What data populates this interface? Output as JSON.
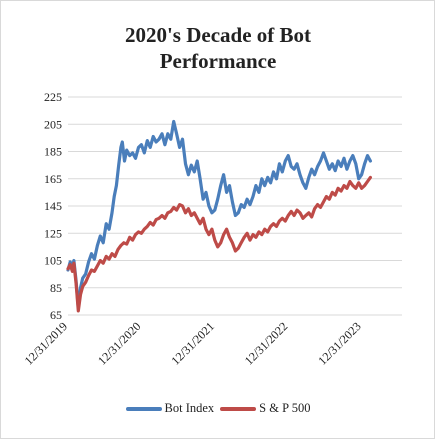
{
  "chart_data": {
    "type": "line",
    "title_lines": [
      "2020's Decade of Bot",
      "Performance"
    ],
    "xlabel": "",
    "ylabel": "",
    "ylim": [
      65,
      225
    ],
    "y_ticks": [
      65,
      85,
      105,
      125,
      145,
      165,
      185,
      205,
      225
    ],
    "x_ticks": [
      "12/31/2019",
      "12/31/2020",
      "12/31/2021",
      "12/31/2022",
      "12/31/2023"
    ],
    "x_range": [
      2020.0,
      2024.55
    ],
    "grid": true,
    "legend_position": "bottom",
    "series": [
      {
        "name": "Bot Index",
        "color": "#4a7ebb",
        "points": [
          [
            2020.0,
            98
          ],
          [
            2020.03,
            104
          ],
          [
            2020.06,
            100
          ],
          [
            2020.08,
            105
          ],
          [
            2020.11,
            90
          ],
          [
            2020.14,
            70
          ],
          [
            2020.17,
            85
          ],
          [
            2020.2,
            92
          ],
          [
            2020.24,
            95
          ],
          [
            2020.28,
            104
          ],
          [
            2020.32,
            110
          ],
          [
            2020.36,
            106
          ],
          [
            2020.4,
            116
          ],
          [
            2020.44,
            123
          ],
          [
            2020.48,
            118
          ],
          [
            2020.52,
            132
          ],
          [
            2020.56,
            128
          ],
          [
            2020.6,
            140
          ],
          [
            2020.63,
            152
          ],
          [
            2020.66,
            160
          ],
          [
            2020.69,
            175
          ],
          [
            2020.72,
            188
          ],
          [
            2020.74,
            192
          ],
          [
            2020.77,
            178
          ],
          [
            2020.8,
            186
          ],
          [
            2020.84,
            182
          ],
          [
            2020.88,
            184
          ],
          [
            2020.92,
            180
          ],
          [
            2020.96,
            188
          ],
          [
            2021.0,
            190
          ],
          [
            2021.04,
            184
          ],
          [
            2021.08,
            193
          ],
          [
            2021.12,
            188
          ],
          [
            2021.16,
            196
          ],
          [
            2021.2,
            192
          ],
          [
            2021.24,
            194
          ],
          [
            2021.28,
            198
          ],
          [
            2021.32,
            190
          ],
          [
            2021.36,
            198
          ],
          [
            2021.4,
            194
          ],
          [
            2021.44,
            207
          ],
          [
            2021.48,
            198
          ],
          [
            2021.52,
            188
          ],
          [
            2021.56,
            194
          ],
          [
            2021.6,
            176
          ],
          [
            2021.64,
            168
          ],
          [
            2021.68,
            175
          ],
          [
            2021.72,
            170
          ],
          [
            2021.76,
            178
          ],
          [
            2021.8,
            165
          ],
          [
            2021.84,
            150
          ],
          [
            2021.88,
            155
          ],
          [
            2021.92,
            145
          ],
          [
            2021.96,
            140
          ],
          [
            2022.0,
            142
          ],
          [
            2022.04,
            150
          ],
          [
            2022.08,
            160
          ],
          [
            2022.12,
            168
          ],
          [
            2022.16,
            155
          ],
          [
            2022.2,
            160
          ],
          [
            2022.24,
            148
          ],
          [
            2022.28,
            138
          ],
          [
            2022.32,
            140
          ],
          [
            2022.36,
            146
          ],
          [
            2022.4,
            144
          ],
          [
            2022.44,
            150
          ],
          [
            2022.48,
            146
          ],
          [
            2022.52,
            152
          ],
          [
            2022.56,
            160
          ],
          [
            2022.6,
            155
          ],
          [
            2022.64,
            165
          ],
          [
            2022.68,
            160
          ],
          [
            2022.72,
            166
          ],
          [
            2022.76,
            162
          ],
          [
            2022.8,
            170
          ],
          [
            2022.84,
            165
          ],
          [
            2022.88,
            176
          ],
          [
            2022.92,
            170
          ],
          [
            2022.96,
            178
          ],
          [
            2023.0,
            182
          ],
          [
            2023.04,
            174
          ],
          [
            2023.08,
            172
          ],
          [
            2023.12,
            176
          ],
          [
            2023.16,
            168
          ],
          [
            2023.2,
            162
          ],
          [
            2023.24,
            158
          ],
          [
            2023.28,
            166
          ],
          [
            2023.32,
            172
          ],
          [
            2023.36,
            168
          ],
          [
            2023.4,
            174
          ],
          [
            2023.44,
            178
          ],
          [
            2023.48,
            184
          ],
          [
            2023.52,
            178
          ],
          [
            2023.56,
            172
          ],
          [
            2023.6,
            176
          ],
          [
            2023.64,
            171
          ],
          [
            2023.68,
            178
          ],
          [
            2023.72,
            174
          ],
          [
            2023.76,
            180
          ],
          [
            2023.8,
            172
          ],
          [
            2023.84,
            178
          ],
          [
            2023.88,
            182
          ],
          [
            2023.92,
            176
          ],
          [
            2023.96,
            165
          ],
          [
            2024.0,
            168
          ],
          [
            2024.04,
            176
          ],
          [
            2024.08,
            182
          ],
          [
            2024.12,
            178
          ]
        ]
      },
      {
        "name": "S & P 500",
        "color": "#be4b48",
        "points": [
          [
            2020.0,
            99
          ],
          [
            2020.03,
            102
          ],
          [
            2020.06,
            97
          ],
          [
            2020.08,
            103
          ],
          [
            2020.11,
            88
          ],
          [
            2020.14,
            68
          ],
          [
            2020.17,
            80
          ],
          [
            2020.2,
            86
          ],
          [
            2020.24,
            89
          ],
          [
            2020.28,
            94
          ],
          [
            2020.32,
            98
          ],
          [
            2020.36,
            97
          ],
          [
            2020.4,
            101
          ],
          [
            2020.44,
            105
          ],
          [
            2020.48,
            103
          ],
          [
            2020.52,
            108
          ],
          [
            2020.56,
            106
          ],
          [
            2020.6,
            110
          ],
          [
            2020.64,
            108
          ],
          [
            2020.68,
            113
          ],
          [
            2020.72,
            116
          ],
          [
            2020.76,
            118
          ],
          [
            2020.8,
            117
          ],
          [
            2020.84,
            122
          ],
          [
            2020.88,
            120
          ],
          [
            2020.92,
            124
          ],
          [
            2020.96,
            126
          ],
          [
            2021.0,
            125
          ],
          [
            2021.04,
            128
          ],
          [
            2021.08,
            130
          ],
          [
            2021.12,
            133
          ],
          [
            2021.16,
            131
          ],
          [
            2021.2,
            135
          ],
          [
            2021.24,
            136
          ],
          [
            2021.28,
            138
          ],
          [
            2021.32,
            136
          ],
          [
            2021.36,
            140
          ],
          [
            2021.4,
            141
          ],
          [
            2021.44,
            144
          ],
          [
            2021.48,
            142
          ],
          [
            2021.52,
            146
          ],
          [
            2021.56,
            145
          ],
          [
            2021.6,
            140
          ],
          [
            2021.64,
            143
          ],
          [
            2021.68,
            138
          ],
          [
            2021.72,
            140
          ],
          [
            2021.76,
            136
          ],
          [
            2021.8,
            132
          ],
          [
            2021.84,
            136
          ],
          [
            2021.88,
            128
          ],
          [
            2021.92,
            124
          ],
          [
            2021.96,
            128
          ],
          [
            2022.0,
            120
          ],
          [
            2022.04,
            115
          ],
          [
            2022.08,
            118
          ],
          [
            2022.12,
            124
          ],
          [
            2022.16,
            128
          ],
          [
            2022.2,
            122
          ],
          [
            2022.24,
            118
          ],
          [
            2022.28,
            112
          ],
          [
            2022.32,
            114
          ],
          [
            2022.36,
            118
          ],
          [
            2022.4,
            122
          ],
          [
            2022.44,
            125
          ],
          [
            2022.48,
            120
          ],
          [
            2022.52,
            124
          ],
          [
            2022.56,
            122
          ],
          [
            2022.6,
            126
          ],
          [
            2022.64,
            124
          ],
          [
            2022.68,
            128
          ],
          [
            2022.72,
            126
          ],
          [
            2022.76,
            130
          ],
          [
            2022.8,
            132
          ],
          [
            2022.84,
            130
          ],
          [
            2022.88,
            134
          ],
          [
            2022.92,
            136
          ],
          [
            2022.96,
            134
          ],
          [
            2023.0,
            138
          ],
          [
            2023.04,
            141
          ],
          [
            2023.08,
            138
          ],
          [
            2023.12,
            142
          ],
          [
            2023.16,
            140
          ],
          [
            2023.2,
            136
          ],
          [
            2023.24,
            138
          ],
          [
            2023.28,
            140
          ],
          [
            2023.32,
            137
          ],
          [
            2023.36,
            143
          ],
          [
            2023.4,
            146
          ],
          [
            2023.44,
            144
          ],
          [
            2023.48,
            148
          ],
          [
            2023.52,
            152
          ],
          [
            2023.56,
            150
          ],
          [
            2023.6,
            155
          ],
          [
            2023.64,
            153
          ],
          [
            2023.68,
            158
          ],
          [
            2023.72,
            156
          ],
          [
            2023.76,
            160
          ],
          [
            2023.8,
            158
          ],
          [
            2023.84,
            163
          ],
          [
            2023.88,
            160
          ],
          [
            2023.92,
            158
          ],
          [
            2023.96,
            162
          ],
          [
            2024.0,
            158
          ],
          [
            2024.04,
            160
          ],
          [
            2024.08,
            163
          ],
          [
            2024.12,
            166
          ]
        ]
      }
    ]
  }
}
